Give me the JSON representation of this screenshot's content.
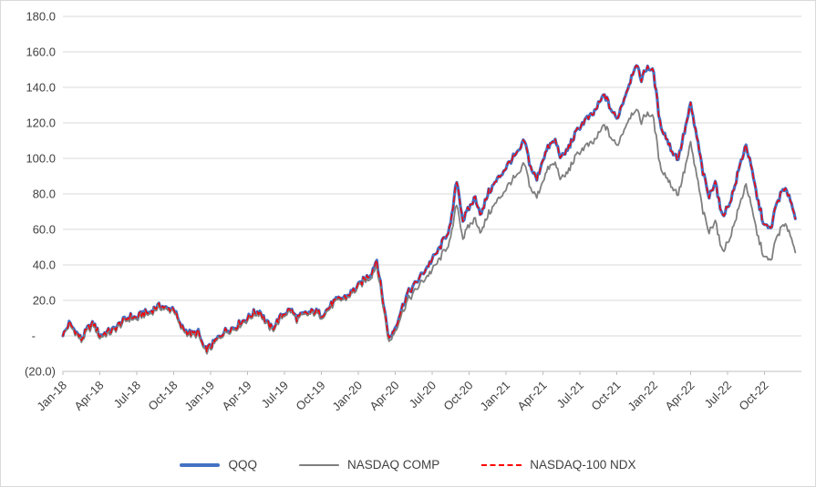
{
  "chart_data": {
    "type": "line",
    "title": "",
    "xlabel": "",
    "ylabel": "",
    "ylim": [
      -20,
      180
    ],
    "ytick_step": 20,
    "ytick_labels": [
      "180.0",
      "160.0",
      "140.0",
      "120.0",
      "100.0",
      "80.0",
      "60.0",
      "40.0",
      "20.0",
      "-",
      "(20.0)"
    ],
    "x_tick_labels": [
      "Jan-18",
      "Apr-18",
      "Jul-18",
      "Oct-18",
      "Jan-19",
      "Apr-19",
      "Jul-19",
      "Oct-19",
      "Jan-20",
      "Apr-20",
      "Jul-20",
      "Oct-20",
      "Jan-21",
      "Apr-21",
      "Jul-21",
      "Oct-21",
      "Jan-22",
      "Apr-22",
      "Jul-22",
      "Oct-22"
    ],
    "x_months_span": 60,
    "points_per_month": 2,
    "grid": "horizontal",
    "legend_position": "bottom",
    "series": [
      {
        "name": "QQQ",
        "color": "#4472C4",
        "style": "solid",
        "width": 3.2,
        "values": [
          0,
          7,
          3,
          -2,
          4,
          7,
          0,
          2,
          3,
          6,
          9,
          11,
          10,
          13,
          13,
          16,
          17,
          15,
          16,
          6,
          3,
          1,
          2,
          -8,
          -6,
          -2,
          2,
          4,
          5,
          8,
          10,
          13,
          14,
          8,
          4,
          9,
          13,
          15,
          10,
          12,
          13,
          14,
          12,
          15,
          19,
          21,
          22,
          25,
          28,
          32,
          35,
          43,
          20,
          -2,
          5,
          15,
          24,
          28,
          33,
          38,
          43,
          48,
          55,
          62,
          88,
          65,
          72,
          78,
          68,
          80,
          85,
          90,
          95,
          100,
          103,
          110,
          95,
          88,
          100,
          107,
          110,
          100,
          105,
          112,
          118,
          122,
          124,
          130,
          136,
          128,
          122,
          132,
          142,
          153,
          145,
          152,
          148,
          120,
          112,
          104,
          100,
          115,
          130,
          112,
          92,
          78,
          88,
          68,
          72,
          82,
          96,
          108,
          92,
          75,
          62,
          60,
          75,
          82,
          80,
          66
        ]
      },
      {
        "name": "NASDAQ COMP",
        "color": "#7F7F7F",
        "style": "solid",
        "width": 1.8,
        "values": [
          0,
          6,
          2,
          -3,
          3,
          6,
          -1,
          1,
          2,
          5,
          8,
          10,
          9,
          12,
          12,
          15,
          16,
          14,
          15,
          5,
          2,
          0,
          1,
          -9,
          -7,
          -3,
          1,
          3,
          4,
          7,
          9,
          12,
          13,
          7,
          3,
          8,
          12,
          14,
          9,
          11,
          12,
          13,
          11,
          14,
          18,
          20,
          21,
          24,
          27,
          31,
          33,
          40,
          18,
          -4,
          3,
          12,
          20,
          24,
          29,
          33,
          37,
          42,
          48,
          54,
          75,
          55,
          62,
          66,
          58,
          68,
          73,
          78,
          83,
          88,
          90,
          97,
          83,
          78,
          88,
          95,
          97,
          88,
          92,
          99,
          104,
          107,
          108,
          113,
          119,
          112,
          107,
          115,
          123,
          128,
          121,
          126,
          122,
          96,
          90,
          84,
          80,
          93,
          108,
          90,
          70,
          58,
          66,
          48,
          52,
          62,
          74,
          86,
          70,
          55,
          44,
          42,
          56,
          62,
          60,
          47
        ]
      },
      {
        "name": "NASDAQ-100 NDX",
        "color": "#FF0000",
        "style": "dashed",
        "width": 1.4,
        "values": [
          0,
          7,
          3,
          -2,
          4,
          7,
          0,
          2,
          3,
          6,
          9,
          11,
          10,
          13,
          13,
          16,
          17,
          15,
          16,
          6,
          3,
          1,
          2,
          -8,
          -6,
          -2,
          2,
          4,
          5,
          8,
          10,
          13,
          14,
          8,
          4,
          9,
          13,
          15,
          10,
          12,
          13,
          14,
          12,
          15,
          19,
          21,
          22,
          25,
          28,
          32,
          35,
          43,
          20,
          -2,
          5,
          15,
          24,
          28,
          33,
          38,
          43,
          48,
          55,
          62,
          88,
          65,
          72,
          78,
          68,
          80,
          85,
          90,
          95,
          100,
          103,
          110,
          95,
          88,
          100,
          107,
          110,
          100,
          105,
          112,
          118,
          122,
          124,
          130,
          136,
          128,
          122,
          132,
          142,
          153,
          145,
          152,
          148,
          120,
          112,
          104,
          100,
          115,
          130,
          112,
          92,
          78,
          88,
          68,
          72,
          82,
          96,
          108,
          92,
          75,
          62,
          60,
          75,
          82,
          80,
          66
        ]
      }
    ]
  },
  "colors": {
    "gridline": "#D9D9D9",
    "axis_line": "#BFBFBF",
    "tick_text": "#404040"
  }
}
